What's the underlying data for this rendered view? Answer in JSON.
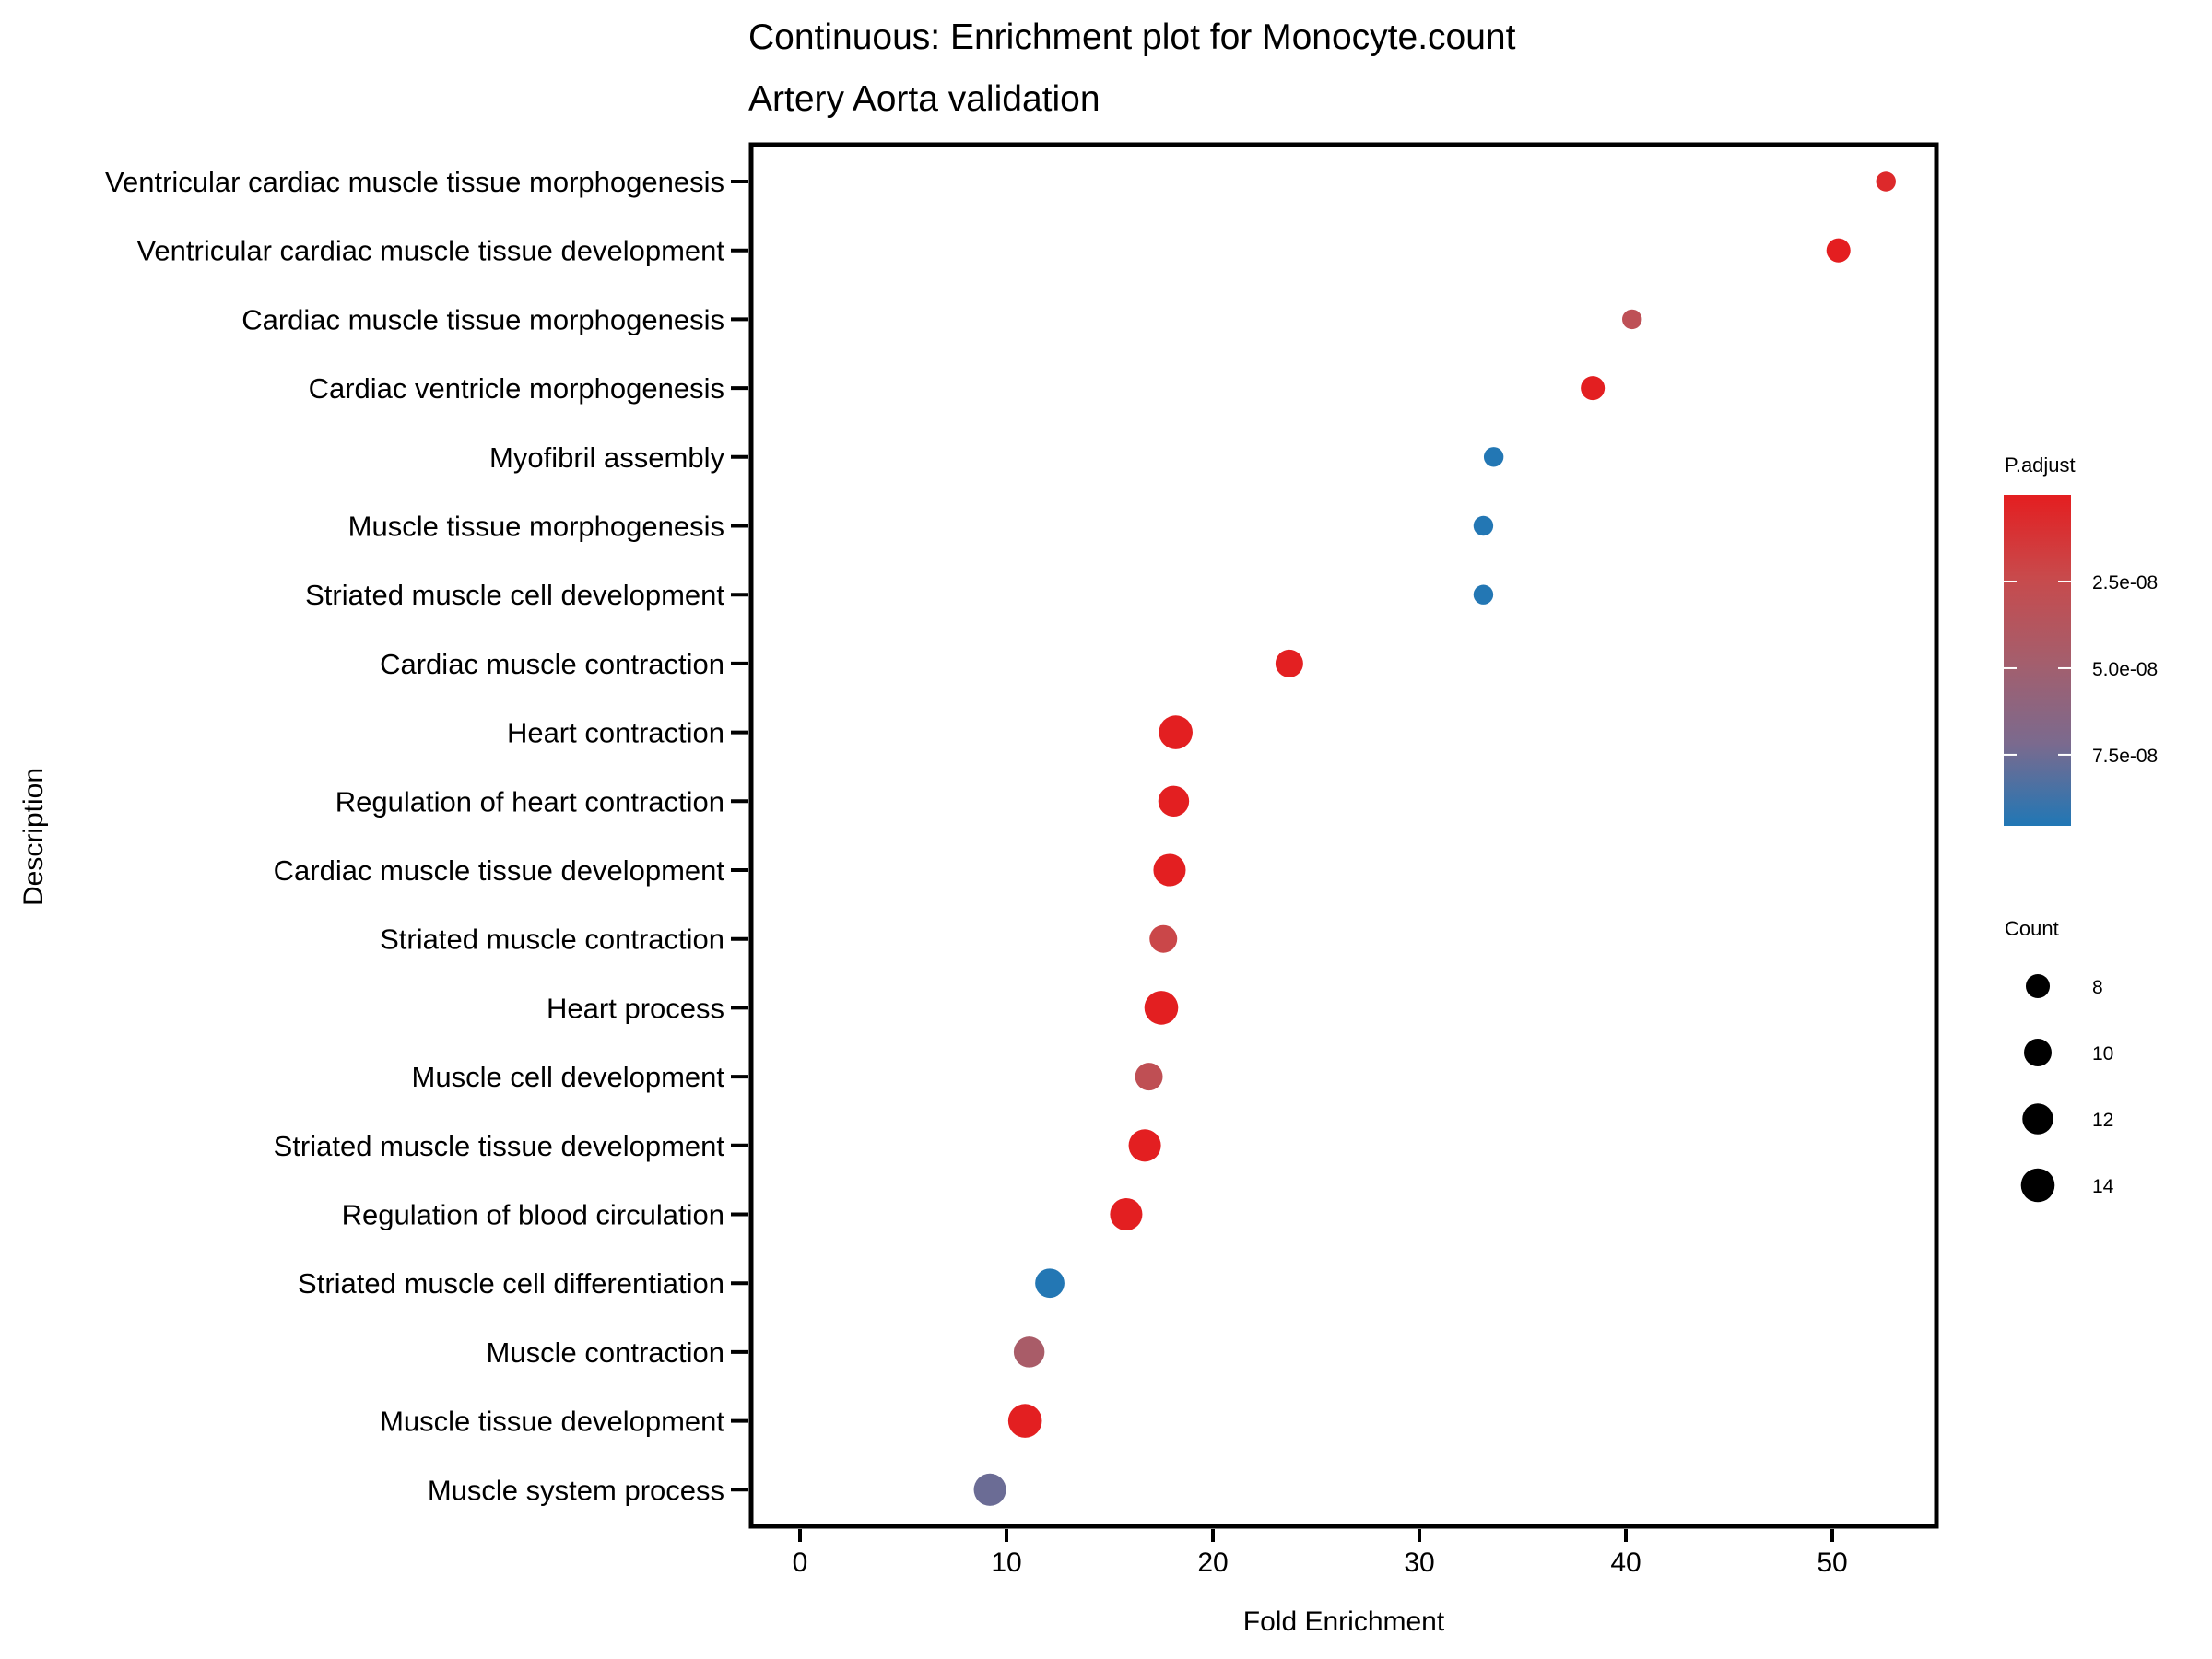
{
  "chart_data": {
    "type": "scatter",
    "title": "Continuous: Enrichment plot for Monocyte.count",
    "subtitle": "Artery Aorta validation",
    "xlabel": "Fold Enrichment",
    "ylabel": "Description",
    "xlim": [
      -2.5,
      55.1
    ],
    "xticks": [
      0,
      10,
      20,
      30,
      40,
      50
    ],
    "xtick_labels": [
      "0",
      "10",
      "20",
      "30",
      "40",
      "50"
    ],
    "grid": false,
    "categories": [
      "Ventricular cardiac muscle tissue morphogenesis",
      "Ventricular cardiac muscle tissue development",
      "Cardiac muscle tissue morphogenesis",
      "Cardiac ventricle morphogenesis",
      "Myofibril assembly",
      "Muscle tissue morphogenesis",
      "Striated muscle cell development",
      "Cardiac muscle contraction",
      "Heart contraction",
      "Regulation of heart contraction",
      "Cardiac muscle tissue development",
      "Striated muscle contraction",
      "Heart process",
      "Muscle cell development",
      "Striated muscle tissue development",
      "Regulation of blood circulation",
      "Striated muscle cell differentiation",
      "Muscle contraction",
      "Muscle tissue development",
      "Muscle system process"
    ],
    "points": [
      {
        "description": "Ventricular cardiac muscle tissue morphogenesis",
        "fold_enrichment": 52.6,
        "count": 6,
        "p_adjust": 6e-09
      },
      {
        "description": "Ventricular cardiac muscle tissue development",
        "fold_enrichment": 50.3,
        "count": 8,
        "p_adjust": 1e-10
      },
      {
        "description": "Cardiac muscle tissue morphogenesis",
        "fold_enrichment": 40.3,
        "count": 6,
        "p_adjust": 3.1e-08
      },
      {
        "description": "Cardiac ventricle morphogenesis",
        "fold_enrichment": 38.4,
        "count": 8,
        "p_adjust": 5e-10
      },
      {
        "description": "Myofibril assembly",
        "fold_enrichment": 33.6,
        "count": 6,
        "p_adjust": 9.5e-08
      },
      {
        "description": "Muscle tissue morphogenesis",
        "fold_enrichment": 33.1,
        "count": 6,
        "p_adjust": 9.5e-08
      },
      {
        "description": "Striated muscle cell development",
        "fold_enrichment": 33.1,
        "count": 6,
        "p_adjust": 9.5e-08
      },
      {
        "description": "Cardiac muscle contraction",
        "fold_enrichment": 23.7,
        "count": 10,
        "p_adjust": 1e-09
      },
      {
        "description": "Heart contraction",
        "fold_enrichment": 18.2,
        "count": 14,
        "p_adjust": 5e-10
      },
      {
        "description": "Regulation of heart contraction",
        "fold_enrichment": 18.1,
        "count": 12,
        "p_adjust": 5e-10
      },
      {
        "description": "Cardiac muscle tissue development",
        "fold_enrichment": 17.9,
        "count": 13,
        "p_adjust": 5e-10
      },
      {
        "description": "Striated muscle contraction",
        "fold_enrichment": 17.6,
        "count": 10,
        "p_adjust": 2.2e-08
      },
      {
        "description": "Heart process",
        "fold_enrichment": 17.5,
        "count": 14,
        "p_adjust": 5e-10
      },
      {
        "description": "Muscle cell development",
        "fold_enrichment": 16.9,
        "count": 10,
        "p_adjust": 3e-08
      },
      {
        "description": "Striated muscle tissue development",
        "fold_enrichment": 16.7,
        "count": 13,
        "p_adjust": 5e-10
      },
      {
        "description": "Regulation of blood circulation",
        "fold_enrichment": 15.8,
        "count": 13,
        "p_adjust": 5e-10
      },
      {
        "description": "Striated muscle cell differentiation",
        "fold_enrichment": 12.1,
        "count": 11,
        "p_adjust": 9.5e-08
      },
      {
        "description": "Muscle contraction",
        "fold_enrichment": 11.1,
        "count": 12,
        "p_adjust": 4.5e-08
      },
      {
        "description": "Muscle tissue development",
        "fold_enrichment": 10.9,
        "count": 14,
        "p_adjust": 5e-10
      },
      {
        "description": "Muscle system process",
        "fold_enrichment": 9.2,
        "count": 13,
        "p_adjust": 7.6e-08
      }
    ],
    "color_legend": {
      "title": "P.adjust",
      "range": [
        0,
        9.55e-08
      ],
      "low_color": "#e41a1c",
      "high_color": "#2077b4",
      "gradient_stops": [
        "#e41e20",
        "#c84a4c",
        "#a55e6c",
        "#7b6a8e",
        "#2177b5"
      ],
      "ticks": [
        2.5e-08,
        5e-08,
        7.5e-08
      ],
      "tick_labels": [
        "2.5e-08",
        "5.0e-08",
        "7.5e-08"
      ]
    },
    "size_legend": {
      "title": "Count",
      "values": [
        8,
        10,
        12,
        14
      ],
      "labels": [
        "8",
        "10",
        "12",
        "14"
      ],
      "range": [
        6,
        14
      ]
    },
    "legend_position": "right"
  }
}
